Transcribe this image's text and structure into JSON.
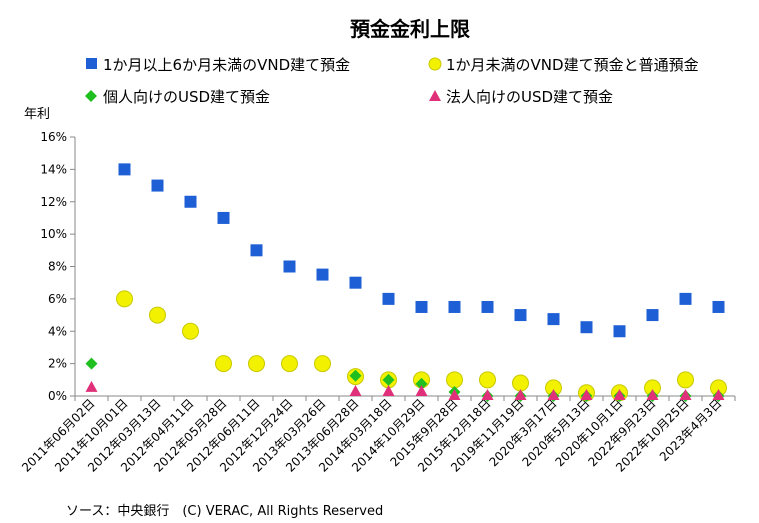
{
  "chart_data": {
    "type": "scatter",
    "title": "預金金利上限",
    "ylabel": "年利",
    "ylim": [
      0,
      16
    ],
    "yticks": [
      "0%",
      "2%",
      "4%",
      "6%",
      "8%",
      "10%",
      "12%",
      "14%",
      "16%"
    ],
    "grid": false,
    "legend_placement": "top",
    "categories": [
      "2011年06月02日",
      "2011年10月01日",
      "2012年03月13日",
      "2012年04月11日",
      "2012年05月28日",
      "2012年06月11日",
      "2012年12月24日",
      "2013年03月26日",
      "2013年06月28日",
      "2014年03月18日",
      "2014年10月29日",
      "2015年9月28日",
      "2015年12月18日",
      "2019年11月19日",
      "2020年3月17日",
      "2020年5月13日",
      "2020年10月1日",
      "2022年9月23日",
      "2022年10月25日",
      "2023年4月3日"
    ],
    "series": [
      {
        "name": "1か月以上6か月未満のVND建て預金",
        "color": "#1f5fd6",
        "marker": "square",
        "values": [
          null,
          14,
          13,
          12,
          11,
          9,
          8,
          7.5,
          7,
          6,
          5.5,
          5.5,
          5.5,
          5,
          4.75,
          4.25,
          4,
          5,
          6,
          5.5
        ]
      },
      {
        "name": "1か月未満のVND建て預金と普通預金",
        "color": "#f2f200",
        "marker": "circle",
        "values": [
          null,
          6,
          5,
          4,
          2,
          2,
          2,
          2,
          1.2,
          1,
          1,
          1,
          1,
          0.8,
          0.5,
          0.2,
          0.2,
          0.5,
          1,
          0.5
        ]
      },
      {
        "name": "個人向けのUSD建て預金",
        "color": "#1fbf1f",
        "marker": "diamond",
        "values": [
          2,
          null,
          null,
          null,
          null,
          null,
          null,
          null,
          1.25,
          1,
          0.75,
          0.25,
          0,
          0,
          0,
          0,
          0,
          0,
          0,
          0
        ]
      },
      {
        "name": "法人向けのUSD建て預金",
        "color": "#e0307a",
        "marker": "triangle",
        "values": [
          0.5,
          null,
          null,
          null,
          null,
          null,
          null,
          null,
          0.25,
          0.25,
          0.25,
          0,
          0,
          0,
          0,
          0,
          0,
          0,
          0,
          0
        ]
      }
    ],
    "source": "ソース：中央銀行　(C) VERAC, All Rights Reserved"
  }
}
